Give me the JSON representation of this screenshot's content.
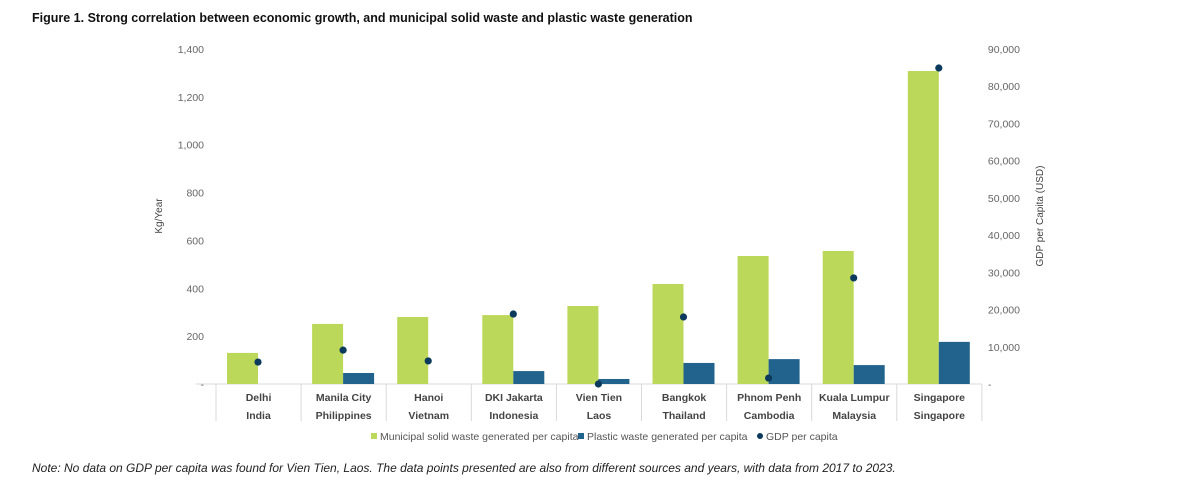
{
  "title": "Figure 1. Strong correlation between economic growth, and municipal solid waste and plastic waste generation",
  "note": "Note: No data on GDP per capita was found for Vien Tien, Laos. The data points presented are also from different sources and years, with data from 2017 to 2023.",
  "chart_data": {
    "type": "bar",
    "title": "Figure 1. Strong correlation between economic growth, and municipal solid waste and plastic waste generation",
    "categories": [
      "Delhi",
      "Manila City",
      "Hanoi",
      "DKI Jakarta",
      "Vien Tien",
      "Bangkok",
      "Phnom Penh",
      "Kuala Lumpur",
      "Singapore"
    ],
    "countries": [
      "India",
      "Philippines",
      "Vietnam",
      "Indonesia",
      "Laos",
      "Thailand",
      "Cambodia",
      "Malaysia",
      "Singapore"
    ],
    "ylabel": "Kg/Year",
    "y2label": "GDP per Capita (USD)",
    "ylim": [
      0,
      1400
    ],
    "y2lim": [
      0,
      90000
    ],
    "yticks": [
      "-",
      "200",
      "400",
      "600",
      "800",
      "1,000",
      "1,200",
      "1,400"
    ],
    "y2ticks": [
      "-",
      "10,000",
      "20,000",
      "30,000",
      "40,000",
      "50,000",
      "60,000",
      "70,000",
      "80,000",
      "90,000"
    ],
    "legend_position": "bottom",
    "series": [
      {
        "name": "Municipal solid waste generated per capita",
        "axis": "left",
        "kind": "bar",
        "color": "#bcd85a",
        "values": [
          130,
          251,
          280,
          288,
          326,
          418,
          535,
          556,
          1308
        ]
      },
      {
        "name": "Plastic waste generated per capita",
        "axis": "left",
        "kind": "bar",
        "color": "#22638e",
        "values": [
          0,
          46,
          0,
          54,
          21,
          88,
          104,
          79,
          176
        ]
      },
      {
        "name": "GDP per capita",
        "axis": "right",
        "kind": "point",
        "color": "#0b3a5c",
        "values": [
          5900,
          9100,
          6200,
          18800,
          0,
          18000,
          1600,
          28500,
          84900
        ]
      }
    ]
  }
}
